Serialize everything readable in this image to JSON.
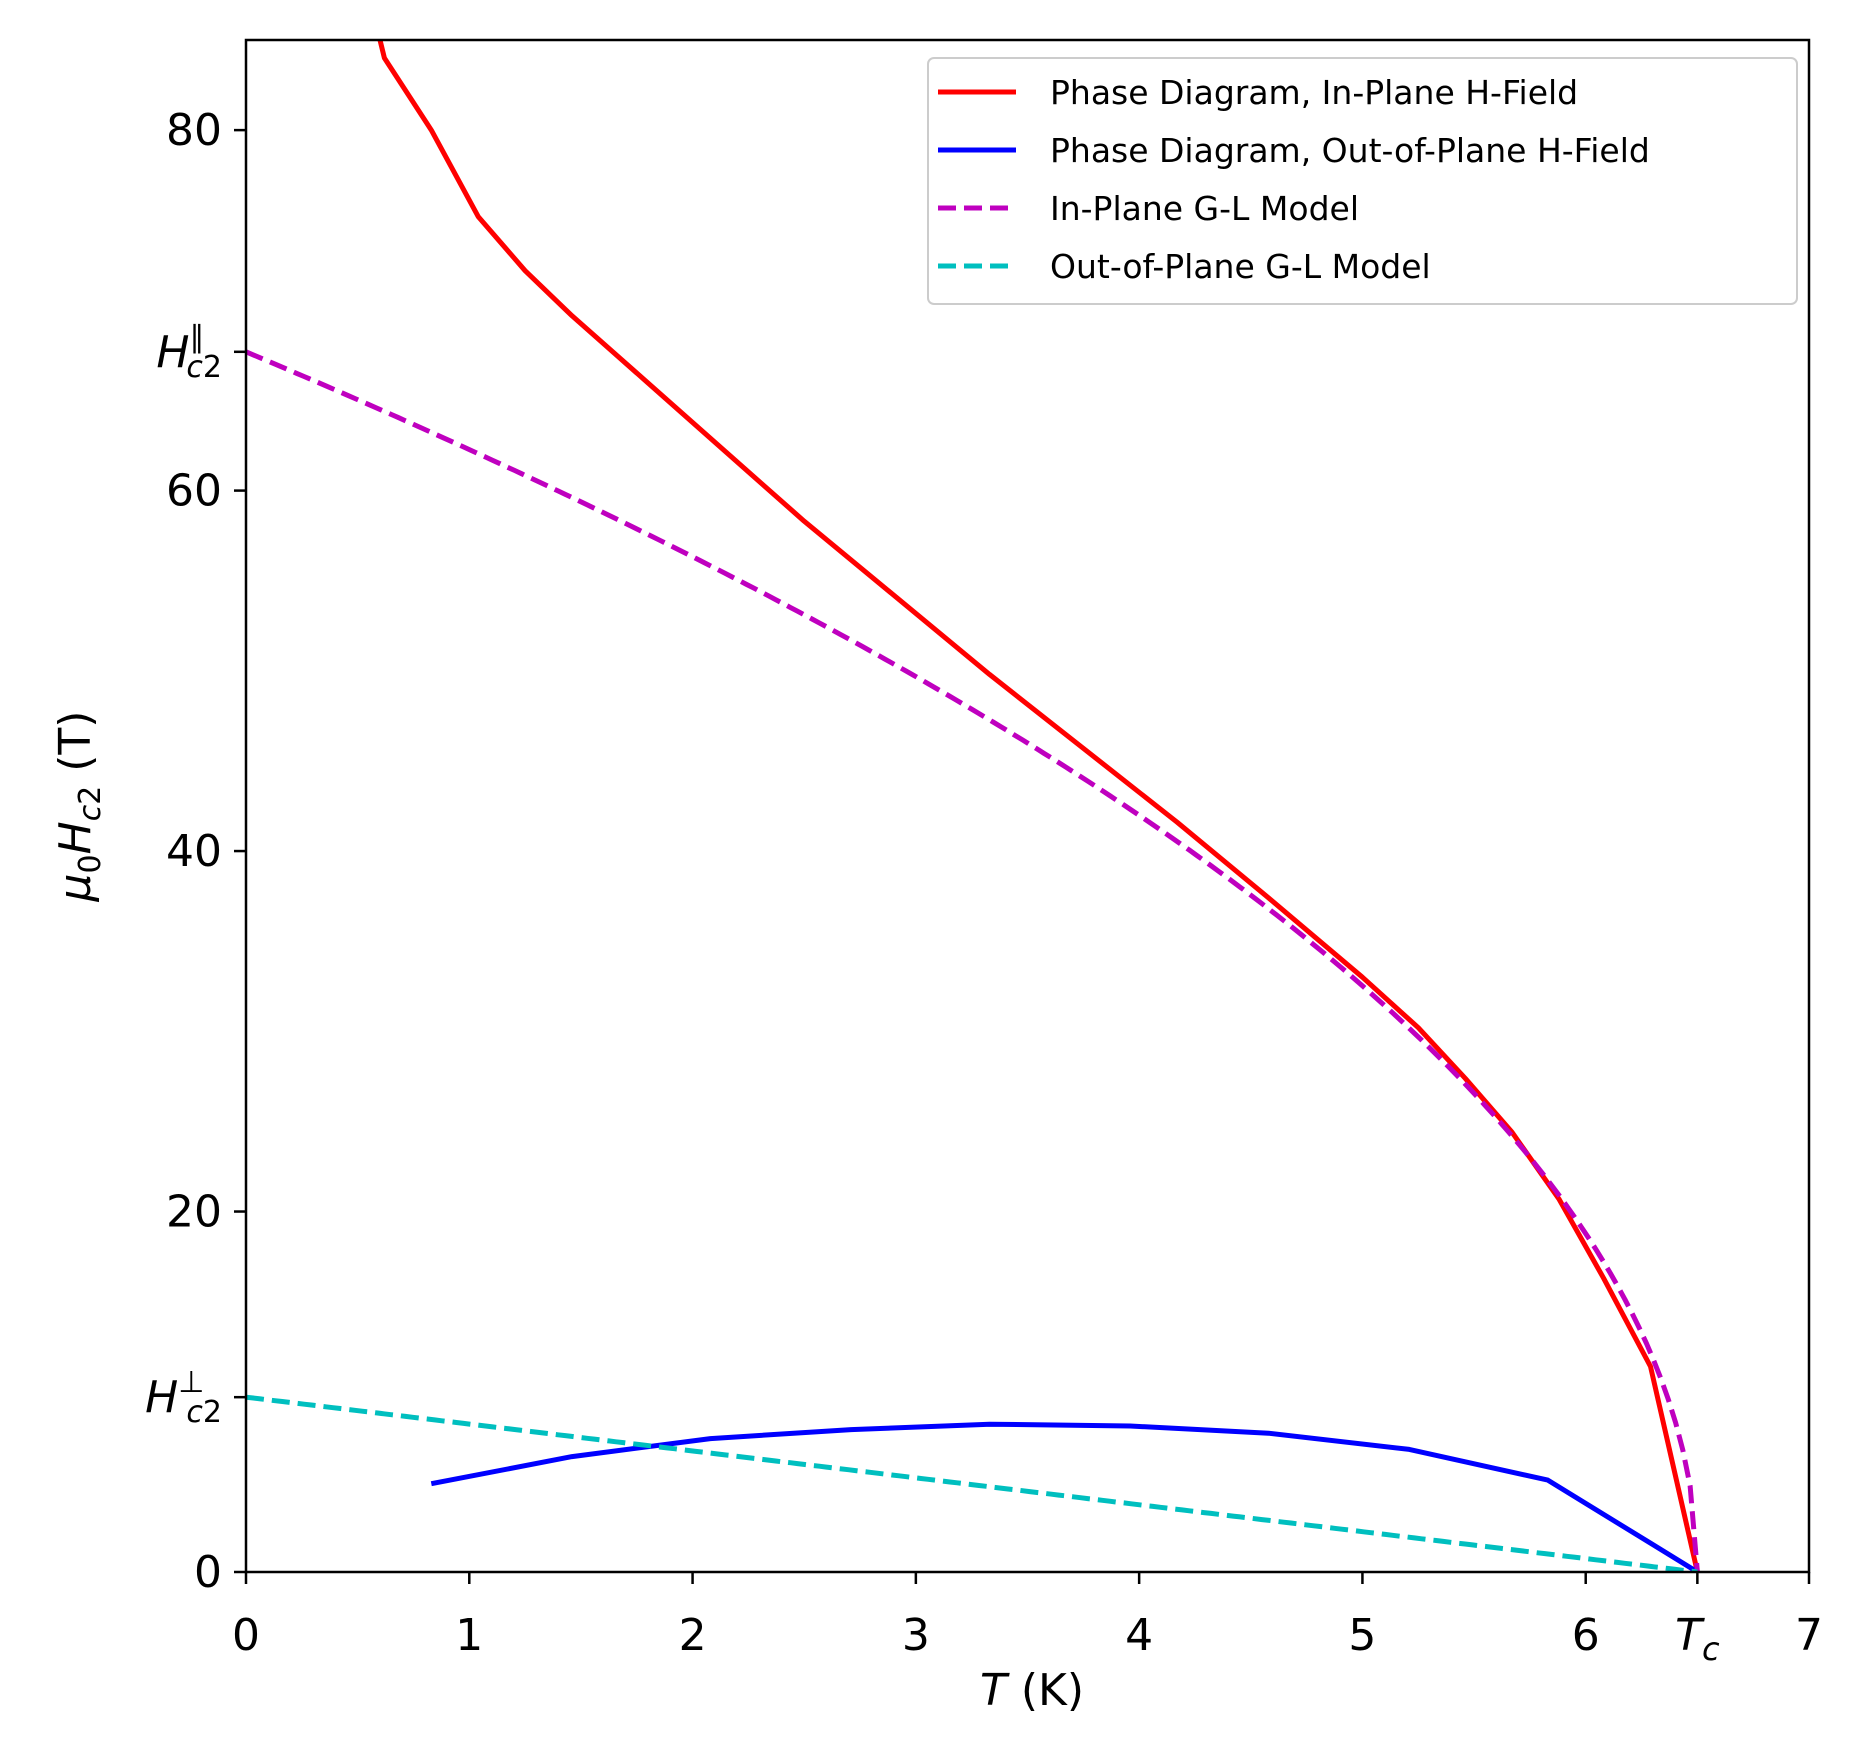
{
  "chart_data": {
    "type": "line",
    "xlabel": "T (K)",
    "ylabel": "μ0Hc2 (T)",
    "xlim": [
      0,
      7
    ],
    "ylim": [
      0,
      85
    ],
    "grid": false,
    "legend_position": "top-right",
    "x_ticks": [
      {
        "value": 0,
        "label": "0"
      },
      {
        "value": 1,
        "label": "1"
      },
      {
        "value": 2,
        "label": "2"
      },
      {
        "value": 3,
        "label": "3"
      },
      {
        "value": 4,
        "label": "4"
      },
      {
        "value": 5,
        "label": "5"
      },
      {
        "value": 6,
        "label": "6"
      },
      {
        "value": 6.5,
        "label": "Tc"
      },
      {
        "value": 7,
        "label": "7"
      }
    ],
    "y_ticks": [
      {
        "value": 0,
        "label": "0"
      },
      {
        "value": 9.7,
        "label": "H⊥c2"
      },
      {
        "value": 20,
        "label": "20"
      },
      {
        "value": 40,
        "label": "40"
      },
      {
        "value": 60,
        "label": "60"
      },
      {
        "value": 67.7,
        "label": "H∥c2"
      },
      {
        "value": 80,
        "label": "80"
      }
    ],
    "series": [
      {
        "name": "Phase Diagram, In-Plane H-Field",
        "color": "#ff0000",
        "dash": "solid",
        "points": [
          [
            0.6,
            85
          ],
          [
            0.62,
            84
          ],
          [
            0.83,
            80
          ],
          [
            1.04,
            75.2
          ],
          [
            1.25,
            72.2
          ],
          [
            1.46,
            69.7
          ],
          [
            1.67,
            67.4
          ],
          [
            2.08,
            62.9
          ],
          [
            2.5,
            58.3
          ],
          [
            2.92,
            54.0
          ],
          [
            3.33,
            49.8
          ],
          [
            3.75,
            45.7
          ],
          [
            4.17,
            41.6
          ],
          [
            4.58,
            37.4
          ],
          [
            5.0,
            33.0
          ],
          [
            5.25,
            30.2
          ],
          [
            5.46,
            27.4
          ],
          [
            5.67,
            24.4
          ],
          [
            5.88,
            20.7
          ],
          [
            6.08,
            16.3
          ],
          [
            6.29,
            11.4
          ],
          [
            6.5,
            0
          ]
        ]
      },
      {
        "name": "Phase Diagram, Out-of-Plane H-Field",
        "color": "#0000ff",
        "dash": "solid",
        "points": [
          [
            0.83,
            4.9
          ],
          [
            1.46,
            6.4
          ],
          [
            2.08,
            7.4
          ],
          [
            2.71,
            7.9
          ],
          [
            3.33,
            8.2
          ],
          [
            3.96,
            8.1
          ],
          [
            4.58,
            7.7
          ],
          [
            5.21,
            6.8
          ],
          [
            5.83,
            5.1
          ],
          [
            6.5,
            0
          ]
        ]
      },
      {
        "name": "In-Plane G-L Model",
        "color": "#bf00bf",
        "dash": "dashed",
        "function": "sqrt",
        "h0": 67.7,
        "tc": 6.5
      },
      {
        "name": "Out-of-Plane G-L Model",
        "color": "#00bfbf",
        "dash": "dashed",
        "function": "linear",
        "h0": 9.7,
        "tc": 6.5
      }
    ]
  }
}
